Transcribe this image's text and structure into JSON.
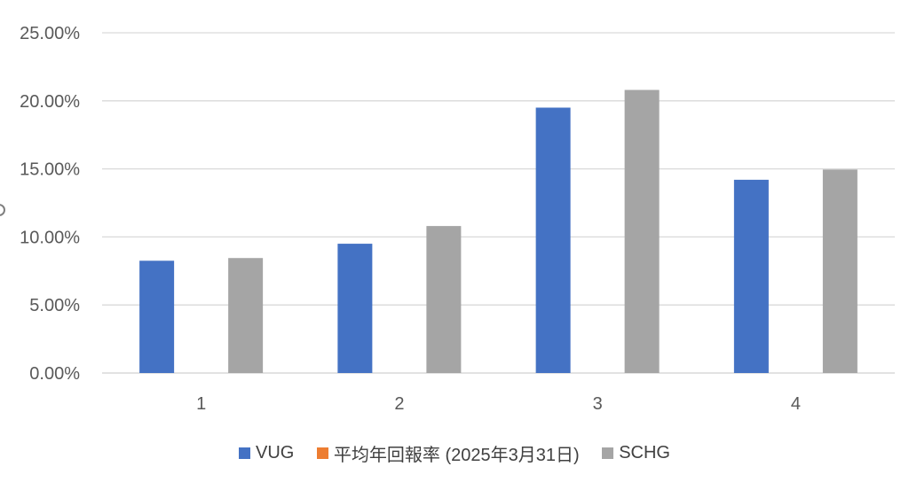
{
  "chart_data": {
    "type": "bar",
    "categories": [
      "1",
      "2",
      "3",
      "4"
    ],
    "series": [
      {
        "name": "VUG",
        "color": "#4472C4",
        "values": [
          8.25,
          9.5,
          19.5,
          14.2
        ]
      },
      {
        "name": "平均年回報率 (2025年3月31日)",
        "color": "#ED7D31",
        "values": [
          null,
          null,
          null,
          null
        ]
      },
      {
        "name": "SCHG",
        "color": "#A5A5A5",
        "values": [
          8.45,
          10.8,
          20.8,
          14.95
        ]
      }
    ],
    "ylim": [
      0,
      25
    ],
    "yticks": [
      "0.00%",
      "5.00%",
      "10.00%",
      "15.00%",
      "20.00%",
      "25.00%"
    ],
    "grid": true,
    "legend_position": "bottom",
    "title": "",
    "xlabel": "",
    "ylabel": ""
  }
}
